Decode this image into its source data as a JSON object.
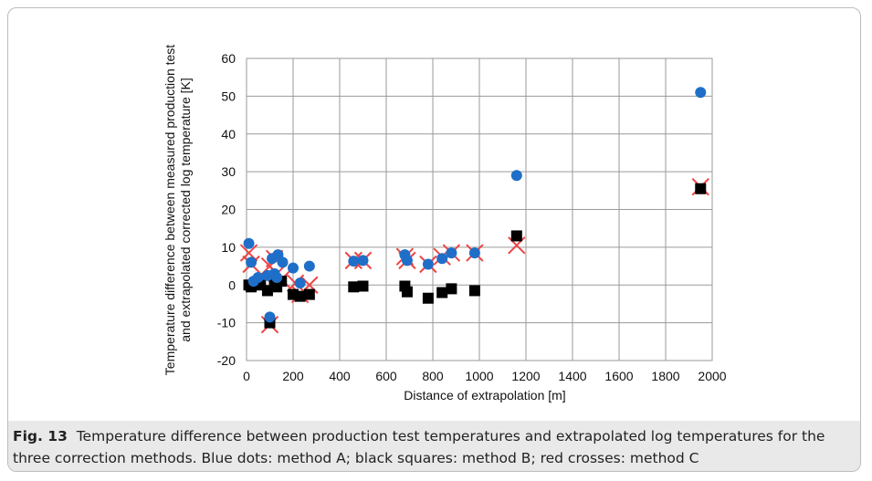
{
  "caption": {
    "label": "Fig. 13",
    "text": "Temperature difference between production test temperatures and extrapolated log temperatures for the three correction methods. Blue dots: method A; black squares: method B; red crosses: method C"
  },
  "chart_data": {
    "type": "scatter",
    "xlabel": "Distance of extrapolation [m]",
    "ylabel": [
      "Temperature difference between measured production test",
      "and extrapolated corrected log temperature [K]"
    ],
    "xlim": [
      0,
      2000
    ],
    "ylim": [
      -20,
      60
    ],
    "xticks": [
      0,
      200,
      400,
      600,
      800,
      1000,
      1200,
      1400,
      1600,
      1800,
      2000
    ],
    "yticks": [
      -20,
      -10,
      0,
      10,
      20,
      30,
      40,
      50,
      60
    ],
    "grid": true,
    "colors": {
      "method_a": "#1f6fc8",
      "method_b": "#000000",
      "method_c": "#ee4444",
      "grid": "#9a9a9a"
    },
    "series": [
      {
        "marker": "circle",
        "color": "#1f6fc8",
        "points": [
          [
            10,
            11
          ],
          [
            20,
            6
          ],
          [
            30,
            1
          ],
          [
            50,
            2
          ],
          [
            90,
            2.5
          ],
          [
            100,
            -8.5
          ],
          [
            110,
            7
          ],
          [
            120,
            3
          ],
          [
            130,
            2
          ],
          [
            135,
            8
          ],
          [
            155,
            6
          ],
          [
            200,
            4.5
          ],
          [
            230,
            0.5
          ],
          [
            270,
            5
          ],
          [
            460,
            6.3
          ],
          [
            500,
            6.5
          ],
          [
            680,
            8
          ],
          [
            690,
            6.5
          ],
          [
            780,
            5.5
          ],
          [
            840,
            7
          ],
          [
            880,
            8.5
          ],
          [
            980,
            8.5
          ],
          [
            1160,
            29
          ],
          [
            1950,
            51
          ]
        ]
      },
      {
        "marker": "square",
        "color": "#000000",
        "points": [
          [
            10,
            0
          ],
          [
            20,
            -0.5
          ],
          [
            40,
            0.5
          ],
          [
            60,
            0
          ],
          [
            90,
            -1.5
          ],
          [
            100,
            -10
          ],
          [
            120,
            0.5
          ],
          [
            130,
            -0.5
          ],
          [
            150,
            1
          ],
          [
            200,
            -2.5
          ],
          [
            230,
            -3
          ],
          [
            270,
            -2.5
          ],
          [
            460,
            -0.5
          ],
          [
            500,
            -0.3
          ],
          [
            680,
            -0.3
          ],
          [
            690,
            -1.8
          ],
          [
            780,
            -3.5
          ],
          [
            840,
            -2
          ],
          [
            880,
            -1
          ],
          [
            980,
            -1.5
          ],
          [
            1160,
            13
          ],
          [
            1950,
            25.5
          ]
        ]
      },
      {
        "marker": "cross",
        "color": "#ee4444",
        "points": [
          [
            10,
            8.5
          ],
          [
            20,
            5.5
          ],
          [
            100,
            -10.5
          ],
          [
            100,
            5
          ],
          [
            120,
            7
          ],
          [
            130,
            3
          ],
          [
            150,
            1.5
          ],
          [
            210,
            0.5
          ],
          [
            230,
            -2.5
          ],
          [
            270,
            0
          ],
          [
            460,
            6.5
          ],
          [
            500,
            6.5
          ],
          [
            680,
            7.5
          ],
          [
            690,
            6.5
          ],
          [
            780,
            5.5
          ],
          [
            840,
            7.5
          ],
          [
            880,
            8.5
          ],
          [
            980,
            8.5
          ],
          [
            1160,
            10.5
          ],
          [
            1950,
            26
          ]
        ]
      }
    ]
  }
}
